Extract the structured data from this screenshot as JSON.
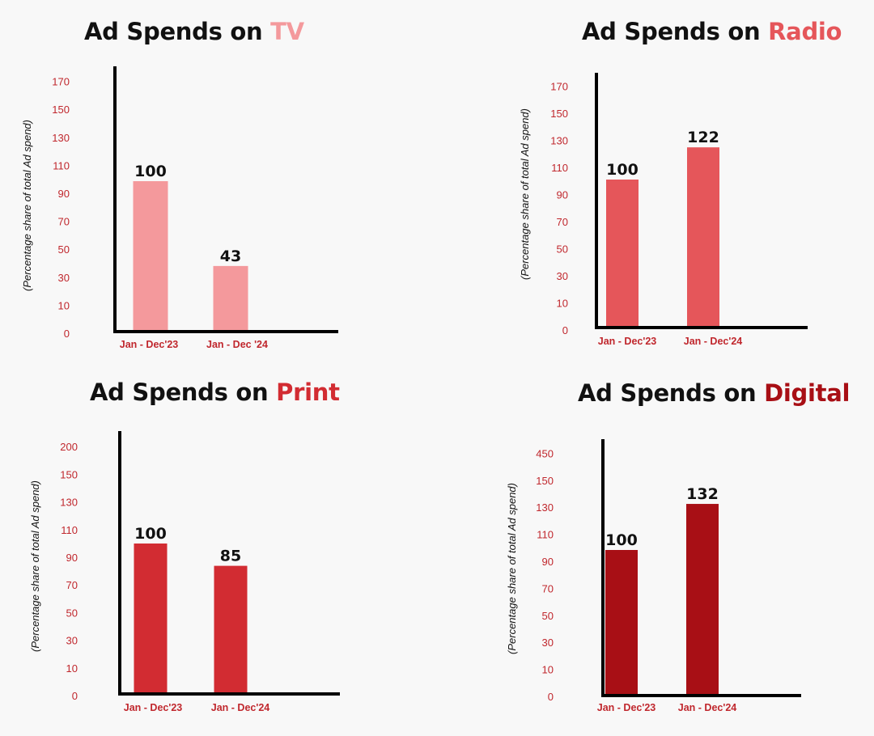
{
  "chart_data": [
    {
      "type": "bar",
      "title_prefix": "Ad Spends on",
      "title_highlight": "TV",
      "ylabel": "(Percentage share of total Ad spend)",
      "yticks": [
        "0",
        "10",
        "30",
        "50",
        "70",
        "90",
        "110",
        "130",
        "150",
        "170"
      ],
      "categories": [
        "Jan - Dec'23",
        "Jan - Dec '24"
      ],
      "values": [
        100,
        43
      ],
      "color": "#f4999c"
    },
    {
      "type": "bar",
      "title_prefix": "Ad Spends on",
      "title_highlight": "Radio",
      "ylabel": "(Percentage share of total Ad spend)",
      "yticks": [
        "0",
        "10",
        "30",
        "50",
        "70",
        "90",
        "110",
        "130",
        "150",
        "170"
      ],
      "categories": [
        "Jan - Dec'23",
        "Jan - Dec'24"
      ],
      "values": [
        100,
        122
      ],
      "color": "#e5565a"
    },
    {
      "type": "bar",
      "title_prefix": "Ad Spends on",
      "title_highlight": "Print",
      "ylabel": "(Percentage share of total Ad spend)",
      "yticks": [
        "0",
        "10",
        "30",
        "50",
        "70",
        "90",
        "110",
        "130",
        "150",
        "200"
      ],
      "categories": [
        "Jan - Dec'23",
        "Jan - Dec'24"
      ],
      "values": [
        100,
        85
      ],
      "color": "#d22c32"
    },
    {
      "type": "bar",
      "title_prefix": "Ad Spends on",
      "title_highlight": "Digital",
      "ylabel": "(Percentage share of total Ad spend)",
      "yticks": [
        "0",
        "10",
        "30",
        "50",
        "70",
        "90",
        "110",
        "130",
        "150",
        "450"
      ],
      "categories": [
        "Jan - Dec'23",
        "Jan - Dec'24"
      ],
      "values": [
        100,
        132
      ],
      "color": "#a80f15"
    }
  ]
}
